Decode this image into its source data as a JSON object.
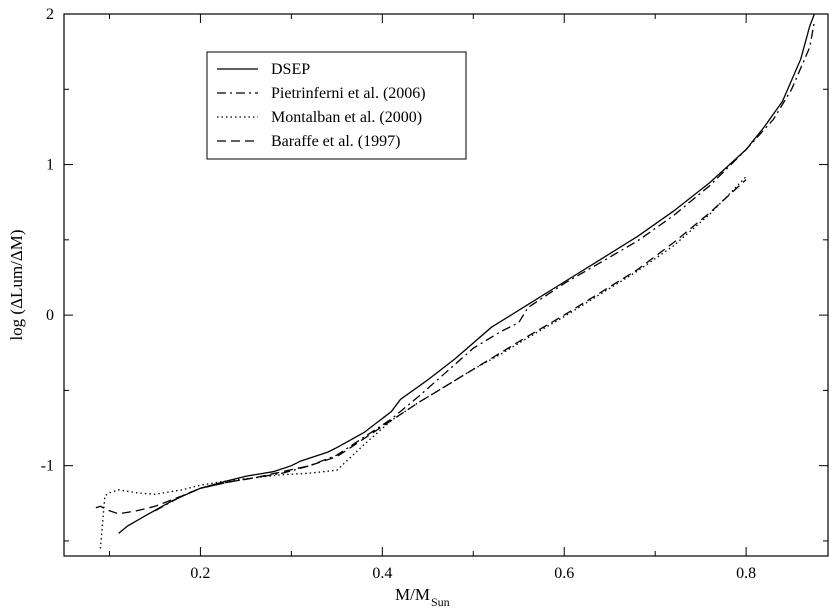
{
  "chart_data": {
    "type": "line",
    "xlabel": "M/M",
    "xlabel_sub": "Sun",
    "ylabel": "log (ΔLum/ΔM)",
    "xlim": [
      0.05,
      0.89
    ],
    "ylim": [
      -1.6,
      2.0
    ],
    "xticks": [
      0.2,
      0.4,
      0.6,
      0.8
    ],
    "yticks": [
      -1,
      0,
      1,
      2
    ],
    "x_tick_labels": [
      "0.2",
      "0.4",
      "0.6",
      "0.8"
    ],
    "y_tick_labels": [
      "-1",
      "0",
      "1",
      "2"
    ],
    "legend_position": "top-left",
    "grid": false,
    "series": [
      {
        "name": "DSEP",
        "dash": "solid",
        "x": [
          0.11,
          0.12,
          0.14,
          0.17,
          0.2,
          0.23,
          0.25,
          0.28,
          0.3,
          0.31,
          0.32,
          0.33,
          0.34,
          0.35,
          0.38,
          0.41,
          0.42,
          0.45,
          0.48,
          0.52,
          0.56,
          0.6,
          0.64,
          0.68,
          0.72,
          0.76,
          0.8,
          0.82,
          0.84,
          0.86,
          0.87,
          0.875
        ],
        "y": [
          -1.45,
          -1.4,
          -1.33,
          -1.23,
          -1.15,
          -1.1,
          -1.07,
          -1.04,
          -1.0,
          -0.97,
          -0.95,
          -0.93,
          -0.91,
          -0.88,
          -0.78,
          -0.64,
          -0.56,
          -0.43,
          -0.29,
          -0.08,
          0.07,
          0.22,
          0.37,
          0.52,
          0.69,
          0.88,
          1.1,
          1.25,
          1.42,
          1.7,
          1.92,
          2.0
        ]
      },
      {
        "name": "Pietrinferni et al. (2006)",
        "dash": "dash-dot",
        "x": [
          0.15,
          0.18,
          0.2,
          0.23,
          0.26,
          0.29,
          0.32,
          0.35,
          0.38,
          0.41,
          0.44,
          0.47,
          0.5,
          0.53,
          0.55,
          0.56,
          0.6,
          0.64,
          0.68,
          0.72,
          0.76,
          0.8,
          0.83,
          0.85,
          0.87,
          0.875
        ],
        "y": [
          -1.3,
          -1.2,
          -1.15,
          -1.11,
          -1.08,
          -1.05,
          -1.0,
          -0.93,
          -0.81,
          -0.69,
          -0.54,
          -0.38,
          -0.22,
          -0.11,
          -0.05,
          0.05,
          0.21,
          0.35,
          0.49,
          0.66,
          0.86,
          1.1,
          1.3,
          1.5,
          1.78,
          1.95
        ]
      },
      {
        "name": "Montalban et al. (2000)",
        "dash": "dotted",
        "x": [
          0.09,
          0.095,
          0.1,
          0.11,
          0.13,
          0.15,
          0.18,
          0.2,
          0.23,
          0.26,
          0.29,
          0.32,
          0.35,
          0.38,
          0.41,
          0.44,
          0.47,
          0.5,
          0.53,
          0.56,
          0.6,
          0.64,
          0.68,
          0.72,
          0.76,
          0.8
        ],
        "y": [
          -1.55,
          -1.2,
          -1.18,
          -1.16,
          -1.18,
          -1.19,
          -1.16,
          -1.13,
          -1.1,
          -1.08,
          -1.06,
          -1.05,
          -1.03,
          -0.86,
          -0.7,
          -0.58,
          -0.47,
          -0.36,
          -0.26,
          -0.15,
          -0.01,
          0.14,
          0.29,
          0.46,
          0.67,
          0.92
        ]
      },
      {
        "name": "Baraffe et al. (1997)",
        "dash": "dashed",
        "x": [
          0.085,
          0.09,
          0.1,
          0.11,
          0.13,
          0.15,
          0.18,
          0.2,
          0.23,
          0.26,
          0.29,
          0.32,
          0.35,
          0.38,
          0.41,
          0.44,
          0.47,
          0.5,
          0.53,
          0.56,
          0.6,
          0.64,
          0.68,
          0.72,
          0.76,
          0.8
        ],
        "y": [
          -1.28,
          -1.27,
          -1.3,
          -1.32,
          -1.3,
          -1.27,
          -1.2,
          -1.15,
          -1.11,
          -1.08,
          -1.04,
          -1.0,
          -0.94,
          -0.82,
          -0.7,
          -0.58,
          -0.47,
          -0.36,
          -0.25,
          -0.14,
          0.0,
          0.15,
          0.3,
          0.48,
          0.68,
          0.9
        ]
      }
    ]
  },
  "colors": {
    "line": "#000000",
    "background": "#ffffff"
  }
}
